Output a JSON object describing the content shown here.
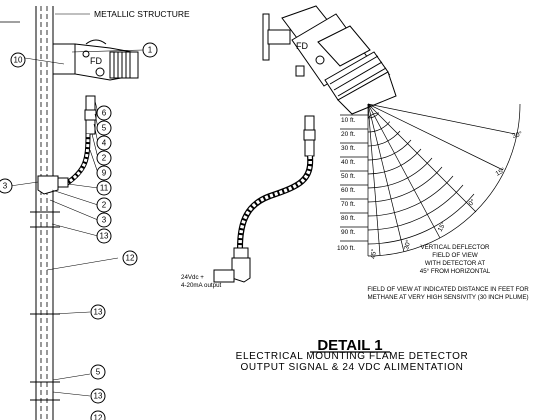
{
  "labels": {
    "metallic_structure": "METALLIC STRUCTURE",
    "fd_left": "FD",
    "fd_right": "FD",
    "power_line1": "24Vdc +",
    "power_line2": "4-20mA output",
    "deflector_line1": "VERTICAL DEFLECTOR",
    "deflector_line2": "FIELD OF VIEW",
    "deflector_line3": "WITH DETECTOR AT",
    "deflector_line4": "45° FROM HORIZONTAL",
    "fov_note_line1": "FIELD OF VIEW AT INDICATED DISTANCE IN FEET FOR",
    "fov_note_line2": "METHANE AT VERY HIGH SENSIVITY (30 INCH PLUME)"
  },
  "title": {
    "main": "DETAIL 1",
    "line1": "ELECTRICAL MOUNTING FLAME DETECTOR",
    "line2": "OUTPUT SIGNAL & 24 VDC ALIMENTATION"
  },
  "callouts": [
    "1",
    "10",
    "6",
    "5",
    "4",
    "2",
    "9",
    "11",
    "3",
    "2",
    "3",
    "13",
    "12",
    "13",
    "5",
    "13",
    "12"
  ],
  "distances": [
    "10 ft.",
    "20 ft.",
    "30 ft.",
    "40 ft.",
    "50 ft.",
    "60 ft.",
    "70 ft.",
    "80 ft.",
    "90 ft.",
    "100 ft."
  ],
  "angles": [
    "30°",
    "15°",
    "0°",
    "15°",
    "30°",
    "45°"
  ]
}
